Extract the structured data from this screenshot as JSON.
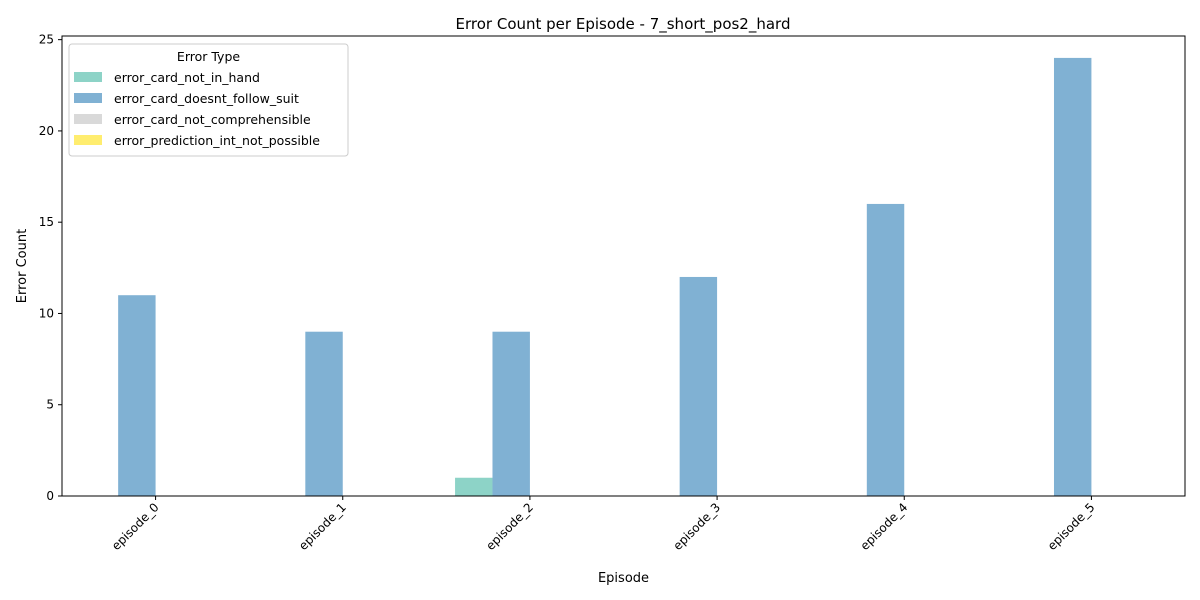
{
  "chart_data": {
    "type": "bar",
    "title": "Error Count per Episode - 7_short_pos2_hard",
    "xlabel": "Episode",
    "ylabel": "Error Count",
    "categories": [
      "episode_0",
      "episode_1",
      "episode_2",
      "episode_3",
      "episode_4",
      "episode_5"
    ],
    "series": [
      {
        "name": "error_card_not_in_hand",
        "color": "#8dd3c7",
        "values": [
          0,
          0,
          1,
          0,
          0,
          0
        ]
      },
      {
        "name": "error_card_doesnt_follow_suit",
        "color": "#80b1d3",
        "values": [
          11,
          9,
          9,
          12,
          16,
          24
        ]
      },
      {
        "name": "error_card_not_comprehensible",
        "color": "#d9d9d9",
        "values": [
          0,
          0,
          0,
          0,
          0,
          0
        ]
      },
      {
        "name": "error_prediction_int_not_possible",
        "color": "#ffed6f",
        "values": [
          0,
          0,
          0,
          0,
          0,
          0
        ]
      }
    ],
    "ylim": [
      0,
      25.2
    ],
    "yticks": [
      0,
      5,
      10,
      15,
      20,
      25
    ],
    "legend": {
      "title": "Error Type",
      "position": "top-left"
    },
    "grid": false
  }
}
